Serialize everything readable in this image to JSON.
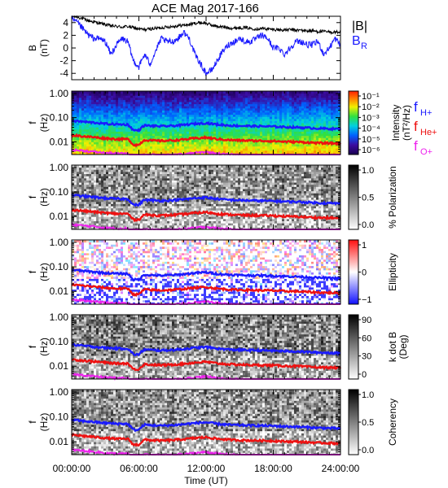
{
  "title": "ACE Mag 2017-166",
  "colors": {
    "h_plus": "#1a1aff",
    "he_plus": "#ee1111",
    "o_plus": "#ee22ee",
    "b_mag": "#000000",
    "b_r": "#1a1aff"
  },
  "chart_data": [
    {
      "type": "line",
      "name": "field",
      "ylabel": "B",
      "yunit": "(nT)",
      "ylim": [
        -5,
        5
      ],
      "yticks": [
        "4",
        "2",
        "0",
        "-2",
        "-4"
      ],
      "legend": [
        "|B|",
        "B"
      ],
      "legend_sub": "R",
      "series": [
        {
          "key": "b_mag",
          "x_hours": [
            0,
            0.5,
            1,
            1.5,
            2,
            2.5,
            3,
            3.5,
            4,
            4.5,
            5,
            5.5,
            6,
            6.5,
            7,
            7.5,
            8,
            8.5,
            9,
            9.5,
            10,
            10.5,
            11,
            11.5,
            12,
            12.5,
            13,
            13.5,
            14,
            14.5,
            15,
            15.5,
            16,
            16.5,
            17,
            17.5,
            18,
            18.5,
            19,
            19.5,
            20,
            20.5,
            21,
            21.5,
            22,
            22.5,
            23,
            23.5,
            24
          ],
          "values": [
            5,
            4.9,
            4.6,
            4.3,
            4.1,
            3.9,
            3.7,
            3.5,
            3.4,
            3.3,
            3.4,
            3.2,
            3.0,
            2.9,
            3.0,
            3.1,
            3.2,
            3.3,
            3.4,
            3.5,
            3.6,
            3.7,
            3.9,
            4.0,
            3.9,
            3.6,
            3.4,
            3.3,
            3.2,
            3.1,
            3.2,
            3.2,
            3.1,
            3.0,
            3.1,
            3.0,
            2.9,
            2.9,
            2.8,
            2.9,
            2.8,
            2.8,
            2.7,
            2.7,
            2.6,
            2.6,
            2.5,
            2.5,
            2.5
          ]
        },
        {
          "key": "b_r",
          "x_hours": [
            0,
            0.5,
            1,
            1.5,
            2,
            2.5,
            3,
            3.5,
            4,
            4.5,
            5,
            5.5,
            6,
            6.5,
            7,
            7.5,
            8,
            8.5,
            9,
            9.5,
            10,
            10.5,
            11,
            11.5,
            12,
            12.5,
            13,
            13.5,
            14,
            14.5,
            15,
            15.5,
            16,
            16.5,
            17,
            17.5,
            18,
            18.5,
            19,
            19.5,
            20,
            20.5,
            21,
            21.5,
            22,
            22.5,
            23,
            23.5,
            24
          ],
          "values": [
            4.5,
            4.0,
            3.0,
            2.0,
            1.5,
            1.5,
            1.0,
            -1.0,
            0.5,
            1.5,
            1.0,
            -2.0,
            -3.0,
            -1.0,
            -2.5,
            -0.5,
            1.5,
            1.0,
            1.0,
            1.5,
            2.5,
            1.5,
            -1.0,
            -2.5,
            -4.0,
            -3.5,
            -2.0,
            -0.5,
            0.5,
            1.0,
            1.5,
            1.0,
            1.0,
            1.5,
            2.0,
            1.5,
            0,
            0,
            -1.0,
            0,
            1.0,
            1.0,
            0.5,
            0.5,
            1.0,
            -1.0,
            0,
            1.5,
            0.5
          ]
        }
      ]
    },
    {
      "type": "heatmap",
      "name": "intensity",
      "ylabel": "f",
      "yunit": "(Hz)",
      "yscale": "log",
      "ylim": [
        0.003,
        1.2
      ],
      "yticks": [
        "1.00",
        "0.10",
        "0.01"
      ],
      "colorbar": {
        "title": "Intensity",
        "unit": "(nT²/Hz)",
        "ticks": [
          "10⁻¹",
          "10⁻²",
          "10⁻³",
          "10⁻⁴",
          "10⁻⁵",
          "10⁻⁶"
        ]
      },
      "legend": [
        {
          "label": "f",
          "sub": "H+",
          "key": "h_plus"
        },
        {
          "label": "f",
          "sub": "He+",
          "key": "he_plus"
        },
        {
          "label": "f",
          "sub": "O+",
          "key": "o_plus"
        }
      ]
    },
    {
      "type": "heatmap",
      "name": "polarization",
      "ylabel": "f",
      "yunit": "(Hz)",
      "yscale": "log",
      "yticks": [
        "1.00",
        "0.10",
        "0.01"
      ],
      "colorbar": {
        "title": "% Polarization",
        "ticks": [
          "1.0",
          "0.5",
          "0.0"
        ]
      }
    },
    {
      "type": "heatmap",
      "name": "ellipticity",
      "ylabel": "f",
      "yunit": "(Hz)",
      "yscale": "log",
      "yticks": [
        "1.00",
        "0.10",
        "0.01"
      ],
      "colorbar": {
        "title": "Ellipticity",
        "ticks": [
          "1",
          "0",
          "−1"
        ]
      }
    },
    {
      "type": "heatmap",
      "name": "kdotb",
      "ylabel": "f",
      "yunit": "(Hz)",
      "yscale": "log",
      "yticks": [
        "1.00",
        "0.10",
        "0.01"
      ],
      "colorbar": {
        "title": "k dot B",
        "unit": "(Deg)",
        "ticks": [
          "90",
          "60",
          "30",
          "0"
        ]
      }
    },
    {
      "type": "heatmap",
      "name": "coherency",
      "ylabel": "f",
      "yunit": "(Hz)",
      "yscale": "log",
      "yticks": [
        "1.00",
        "0.10",
        "0.01"
      ],
      "colorbar": {
        "title": "Coherency",
        "ticks": [
          "1.0",
          "0.5",
          "0.0"
        ]
      }
    }
  ],
  "gyro_lines": {
    "x_hours": [
      0,
      1,
      2,
      3,
      4,
      5,
      5.5,
      6,
      6.5,
      7,
      8,
      9,
      10,
      11,
      12,
      13,
      14,
      15,
      16,
      17,
      18,
      19,
      20,
      21,
      22,
      23,
      24
    ],
    "h_plus_hz": [
      0.075,
      0.068,
      0.062,
      0.056,
      0.053,
      0.052,
      0.03,
      0.03,
      0.048,
      0.046,
      0.044,
      0.046,
      0.05,
      0.056,
      0.06,
      0.052,
      0.048,
      0.046,
      0.045,
      0.044,
      0.043,
      0.041,
      0.04,
      0.038,
      0.036,
      0.035,
      0.034
    ],
    "he_plus_hz": [
      0.019,
      0.017,
      0.0155,
      0.014,
      0.013,
      0.013,
      0.0075,
      0.0075,
      0.012,
      0.0115,
      0.011,
      0.0115,
      0.0125,
      0.014,
      0.015,
      0.013,
      0.012,
      0.0115,
      0.0112,
      0.011,
      0.0108,
      0.0102,
      0.01,
      0.0095,
      0.009,
      0.0088,
      0.0085
    ],
    "o_plus_hz": [
      0.0047,
      0.0043,
      0.0039,
      0.0035,
      0.0033,
      0.0033,
      0.0019,
      0.0019,
      0.003,
      0.0029,
      0.0028,
      0.0029,
      0.0031,
      0.0035,
      0.0038,
      0.0033,
      0.003,
      0.0029,
      0.0028,
      0.0028,
      0.0027,
      0.0026,
      0.0025,
      0.0024,
      0.0023,
      0.0022,
      0.0021
    ]
  },
  "x_axis": {
    "label": "Time (UT)",
    "range_hours": [
      0,
      24
    ],
    "ticks": [
      {
        "hour": 0,
        "label": "00:00:00"
      },
      {
        "hour": 6,
        "label": "06:00:00"
      },
      {
        "hour": 12,
        "label": "12:00:00"
      },
      {
        "hour": 18,
        "label": "18:00:00"
      },
      {
        "hour": 24,
        "label": "24:00:00"
      }
    ]
  }
}
